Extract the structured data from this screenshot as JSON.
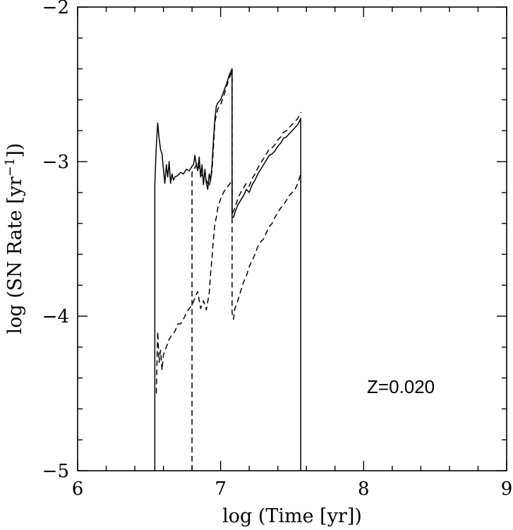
{
  "chart_data": {
    "type": "line",
    "title": "",
    "xlabel": "log (Time [yr])",
    "ylabel_parts": {
      "prefix": "log (SN Rate [yr",
      "exp": "−1",
      "suffix": "])"
    },
    "xlim": [
      6,
      9
    ],
    "ylim": [
      -5,
      -2
    ],
    "xticks": [
      6,
      7,
      8,
      9
    ],
    "xtick_labels": [
      "6",
      "7",
      "8",
      "9"
    ],
    "yticks": [
      -5,
      -4,
      -3,
      -2
    ],
    "ytick_labels": [
      "−5",
      "−4",
      "−3",
      "−2"
    ],
    "x_minor_step": 0.2,
    "y_minor_step": 0.2,
    "grid": false,
    "annotation": "Z=0.020",
    "series": [
      {
        "style": "solid",
        "x": [
          6.54,
          6.54,
          6.55,
          6.56,
          6.57,
          6.58,
          6.59,
          6.6,
          6.61,
          6.62,
          6.63,
          6.64,
          6.65,
          6.66,
          6.67,
          6.68,
          6.7,
          6.72,
          6.74,
          6.76,
          6.78,
          6.8,
          6.81,
          6.82,
          6.83,
          6.84,
          6.85,
          6.86,
          6.87,
          6.88,
          6.89,
          6.9,
          6.91,
          6.92,
          6.93,
          6.94,
          6.95,
          6.96,
          6.97,
          6.98,
          7.0,
          7.02,
          7.04,
          7.06,
          7.07,
          7.08,
          7.08,
          7.09,
          7.1,
          7.12,
          7.14,
          7.16,
          7.18,
          7.2,
          7.22,
          7.24,
          7.26,
          7.28,
          7.3,
          7.32,
          7.34,
          7.36,
          7.38,
          7.4,
          7.42,
          7.44,
          7.46,
          7.48,
          7.5,
          7.52,
          7.54,
          7.56,
          7.56
        ],
        "y": [
          -5.0,
          -3.15,
          -2.9,
          -2.75,
          -2.85,
          -2.92,
          -2.95,
          -3.05,
          -3.14,
          -3.02,
          -3.1,
          -3.0,
          -3.14,
          -3.08,
          -3.12,
          -3.1,
          -3.09,
          -3.07,
          -3.08,
          -3.05,
          -3.06,
          -3.03,
          -3.02,
          -2.96,
          -3.02,
          -3.06,
          -2.97,
          -3.1,
          -3.02,
          -3.15,
          -3.05,
          -3.14,
          -3.18,
          -3.08,
          -3.12,
          -3.02,
          -2.86,
          -2.72,
          -2.64,
          -2.62,
          -2.6,
          -2.55,
          -2.5,
          -2.44,
          -2.42,
          -2.4,
          -3.36,
          -3.36,
          -3.33,
          -3.28,
          -3.25,
          -3.22,
          -3.18,
          -3.2,
          -3.15,
          -3.12,
          -3.08,
          -3.05,
          -3.02,
          -2.99,
          -2.96,
          -2.95,
          -2.93,
          -2.9,
          -2.88,
          -2.85,
          -2.84,
          -2.82,
          -2.8,
          -2.78,
          -2.76,
          -2.72,
          -5.0
        ]
      },
      {
        "style": "dashed",
        "x": [
          6.55,
          6.56,
          6.57,
          6.58,
          6.59,
          6.6,
          6.62,
          6.64,
          6.66,
          6.68,
          6.7,
          6.72,
          6.74,
          6.76,
          6.78,
          6.8,
          6.82,
          6.84,
          6.86,
          6.88,
          6.9,
          6.92,
          6.93,
          6.94,
          6.95,
          6.96,
          6.97,
          6.98,
          7.0,
          7.02,
          7.04,
          7.06,
          7.08,
          7.08,
          7.09,
          7.1,
          7.12,
          7.14,
          7.16,
          7.18,
          7.2,
          7.22,
          7.24,
          7.26,
          7.28,
          7.3,
          7.32,
          7.34,
          7.36,
          7.38,
          7.4,
          7.42,
          7.44,
          7.46,
          7.48,
          7.5,
          7.52,
          7.54,
          7.56
        ],
        "y": [
          -4.5,
          -4.1,
          -4.3,
          -4.22,
          -4.35,
          -4.25,
          -4.2,
          -4.15,
          -4.12,
          -4.1,
          -4.05,
          -4.05,
          -4.02,
          -3.98,
          -3.95,
          -3.93,
          -3.88,
          -3.84,
          -3.95,
          -3.9,
          -3.96,
          -3.85,
          -3.72,
          -3.62,
          -3.5,
          -3.4,
          -3.36,
          -3.3,
          -3.24,
          -3.2,
          -3.17,
          -3.15,
          -3.12,
          -3.98,
          -4.02,
          -3.95,
          -3.9,
          -3.84,
          -3.78,
          -3.74,
          -3.68,
          -3.64,
          -3.6,
          -3.55,
          -3.52,
          -3.5,
          -3.46,
          -3.42,
          -3.4,
          -3.36,
          -3.33,
          -3.3,
          -3.28,
          -3.25,
          -3.22,
          -3.2,
          -3.18,
          -3.14,
          -3.08
        ]
      },
      {
        "style": "dashed",
        "x": [
          6.8,
          6.8,
          6.82,
          6.84,
          6.86,
          6.88,
          6.9,
          6.92,
          6.94,
          6.96,
          6.98,
          7.0,
          7.02,
          7.04,
          7.06,
          7.07,
          7.08,
          7.08,
          7.1,
          7.12,
          7.14,
          7.16,
          7.18,
          7.2,
          7.22,
          7.24,
          7.26,
          7.28,
          7.3,
          7.32,
          7.34,
          7.36,
          7.38,
          7.4,
          7.42,
          7.44,
          7.46,
          7.48,
          7.5,
          7.52,
          7.54,
          7.56
        ],
        "y": [
          -5.0,
          -3.07,
          -3.04,
          -3.0,
          -3.08,
          -3.1,
          -3.12,
          -3.16,
          -3.06,
          -2.74,
          -2.66,
          -2.63,
          -2.58,
          -2.52,
          -2.46,
          -2.44,
          -2.4,
          -3.34,
          -3.3,
          -3.24,
          -3.2,
          -3.17,
          -3.14,
          -3.16,
          -3.11,
          -3.08,
          -3.04,
          -3.01,
          -2.98,
          -2.95,
          -2.92,
          -2.91,
          -2.89,
          -2.86,
          -2.84,
          -2.81,
          -2.8,
          -2.78,
          -2.76,
          -2.74,
          -2.72,
          -2.68
        ]
      }
    ]
  }
}
